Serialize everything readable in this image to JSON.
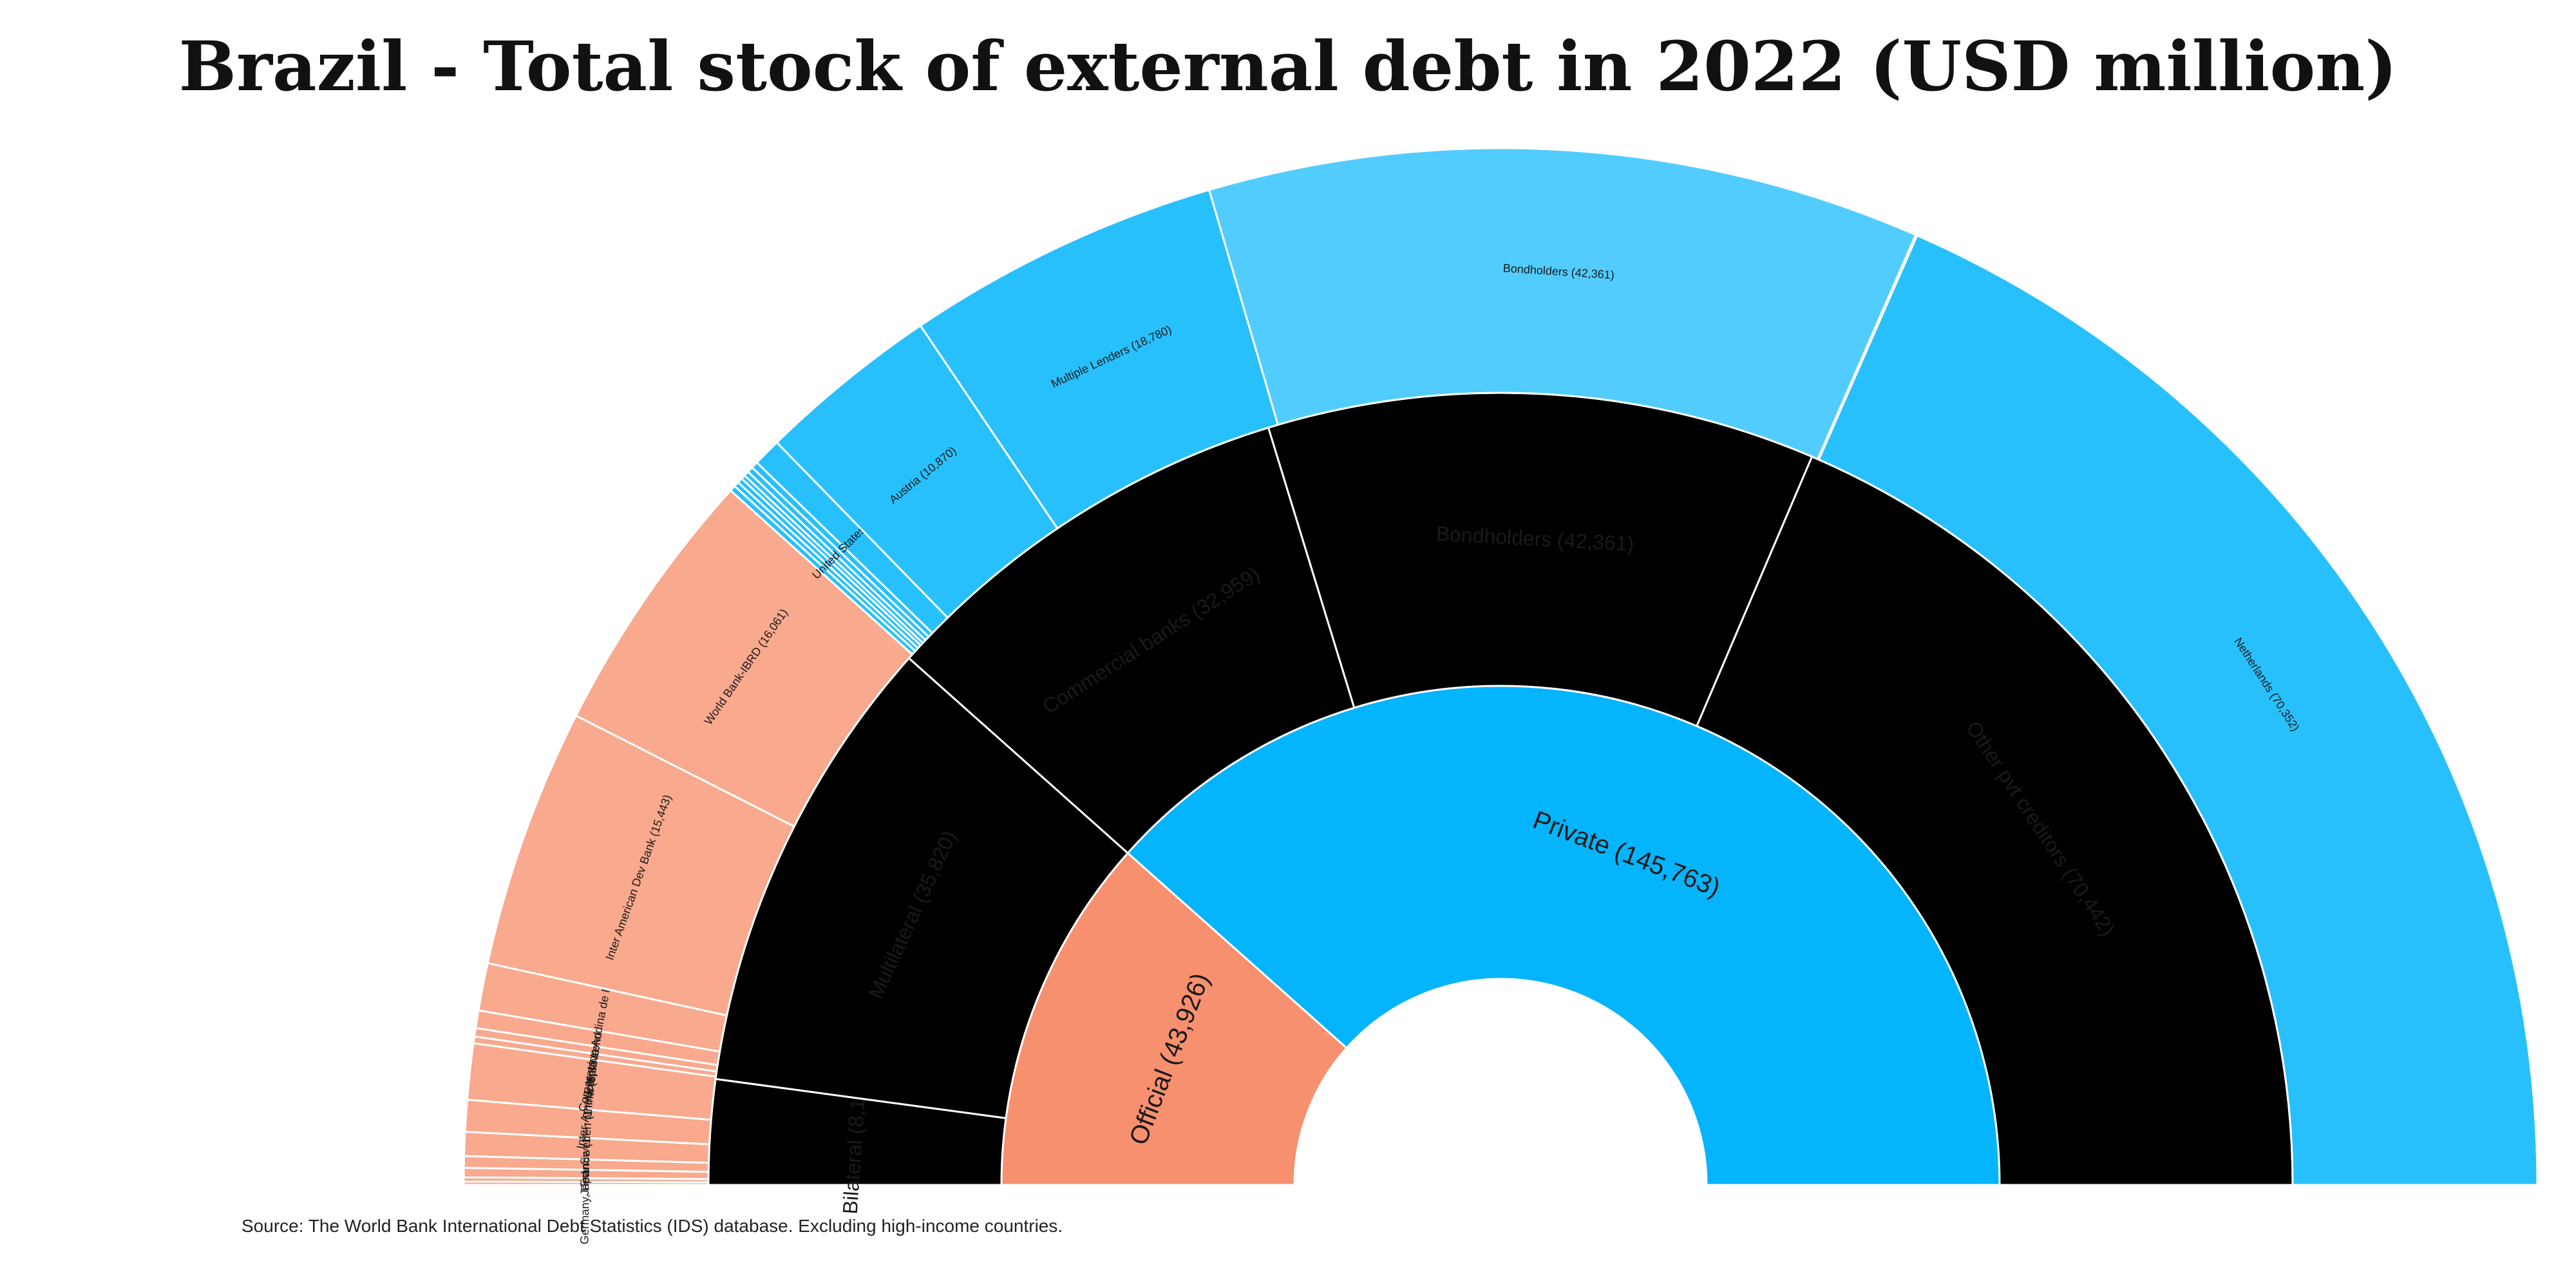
{
  "title": "Brazil - Total stock of external debt in 2022 (USD million)",
  "source": "Source: The World Bank International Debt Statistics (IDS) database. Excluding high-income countries.",
  "colors": {
    "official_inner": "#F7906E",
    "official_mid": "#F79A7B",
    "official_outer": "#F8A98E",
    "private_inner": "#04B4FC",
    "private_mid": "#18BAFC",
    "private_outer": "#28C0FC",
    "bondholders_outer": "#52CCFD"
  },
  "chart_data": {
    "type": "sunburst",
    "total": 189689,
    "rings": [
      {
        "level": "inner",
        "segments": [
          {
            "id": "official",
            "label": "Official (43,926)",
            "value": 43926,
            "group": "official"
          },
          {
            "id": "private",
            "label": "Private (145,763)",
            "value": 145763,
            "group": "private"
          }
        ]
      },
      {
        "level": "middle",
        "segments": [
          {
            "id": "bilateral",
            "label": "Bilateral (8,106)",
            "value": 8106,
            "group": "official"
          },
          {
            "id": "multilateral",
            "label": "Multilateral (35,820)",
            "value": 35820,
            "group": "official"
          },
          {
            "id": "commercial-banks",
            "label": "Commercial banks (32,959)",
            "value": 32959,
            "group": "private"
          },
          {
            "id": "bondholders",
            "label": "Bondholders (42,361)",
            "value": 42361,
            "group": "private"
          },
          {
            "id": "other-pvt-creditors",
            "label": "Other pvt creditors (70,442)",
            "value": 70442,
            "group": "private"
          }
        ]
      },
      {
        "level": "outer",
        "segments": [
          {
            "label": "",
            "value": 200,
            "group": "official"
          },
          {
            "label": "",
            "value": 250,
            "group": "official"
          },
          {
            "label": "Germany, Fed.Rep.of (556)",
            "value": 556,
            "group": "official"
          },
          {
            "label": "Japan (691)",
            "value": 691,
            "group": "official"
          },
          {
            "label": "France (1,425)",
            "value": 1425,
            "group": "official"
          },
          {
            "label": "Sweden (1,884)",
            "value": 1884,
            "group": "official"
          },
          {
            "label": "China (3,333)",
            "value": 3333,
            "group": "official"
          },
          {
            "label": "",
            "value": 400,
            "group": "official"
          },
          {
            "label": "Inter-American Investment Corporation",
            "value": 500,
            "group": "official"
          },
          {
            "label": "Multiple Lenders (1,050)",
            "value": 1050,
            "group": "official"
          },
          {
            "label": "Corporacion Andina de Fomento (2,822)",
            "value": 2822,
            "group": "official"
          },
          {
            "label": "Inter American Dev Bank (15,443)",
            "value": 15443,
            "group": "official"
          },
          {
            "label": "World Bank-IBRD (16,061)",
            "value": 16061,
            "group": "official"
          },
          {
            "label": "",
            "value": 350,
            "group": "private"
          },
          {
            "label": "",
            "value": 300,
            "group": "private"
          },
          {
            "label": "",
            "value": 300,
            "group": "private"
          },
          {
            "label": "",
            "value": 250,
            "group": "private"
          },
          {
            "label": "",
            "value": 300,
            "group": "private"
          },
          {
            "label": "",
            "value": 350,
            "group": "private"
          },
          {
            "label": "",
            "value": 400,
            "group": "private"
          },
          {
            "label": "United States (1,660)",
            "value": 1660,
            "group": "private"
          },
          {
            "label": "Austria (10,870)",
            "value": 10870,
            "group": "private"
          },
          {
            "label": "Multiple Lenders (18,780)",
            "value": 18780,
            "group": "private"
          },
          {
            "label": "Bondholders (42,361)",
            "value": 42361,
            "group": "bondholders"
          },
          {
            "label": "",
            "value": 90,
            "group": "private"
          },
          {
            "label": "Netherlands (70,352)",
            "value": 70352,
            "group": "private"
          }
        ]
      }
    ]
  }
}
